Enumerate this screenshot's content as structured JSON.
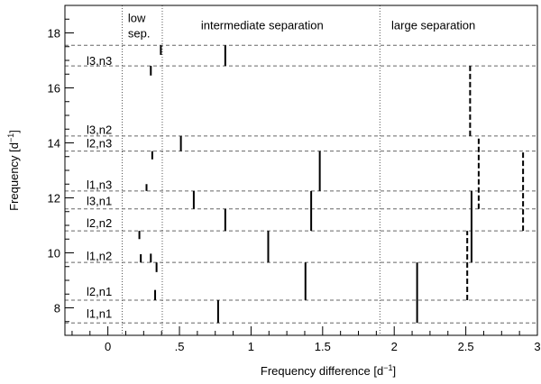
{
  "chart_data": {
    "type": "scatter",
    "title": "",
    "xlabel": "Frequency difference [d",
    "xlabel_sup": "−1",
    "xlabel_end": "]",
    "ylabel": "Frequency [d",
    "ylabel_sup": "−1",
    "ylabel_end": "]",
    "xlim": [
      -0.3,
      3.0
    ],
    "ylim": [
      7.0,
      19.0
    ],
    "grid": false,
    "x_ticks": [
      {
        "value": 0,
        "label": "0"
      },
      {
        "value": 0.5,
        "label": ".5"
      },
      {
        "value": 1,
        "label": "1"
      },
      {
        "value": 1.5,
        "label": "1.5"
      },
      {
        "value": 2,
        "label": "2"
      },
      {
        "value": 2.5,
        "label": "2.5"
      },
      {
        "value": 3,
        "label": "3"
      }
    ],
    "y_ticks": [
      {
        "value": 8,
        "label": "8"
      },
      {
        "value": 10,
        "label": "10"
      },
      {
        "value": 12,
        "label": "12"
      },
      {
        "value": 14,
        "label": "14"
      },
      {
        "value": 16,
        "label": "16"
      },
      {
        "value": 18,
        "label": "18"
      }
    ],
    "region_dividers": [
      0.1,
      0.38,
      1.9
    ],
    "region_labels": [
      {
        "text": "low",
        "x": 0.14,
        "y": 18.55
      },
      {
        "text": "sep.",
        "x": 0.14,
        "y": 18.0
      },
      {
        "text": "intermediate separation",
        "x": 0.65,
        "y": 18.3
      },
      {
        "text": "large separation",
        "x": 1.98,
        "y": 18.3
      }
    ],
    "modes": [
      {
        "label": "l1,n1",
        "freq": 7.45,
        "label_y": 7.8
      },
      {
        "label": "l2,n1",
        "freq": 8.28,
        "label_y": 8.6
      },
      {
        "label": "l1,n2",
        "freq": 9.65,
        "label_y": 9.9
      },
      {
        "label": "l2,n2",
        "freq": 10.8,
        "label_y": 11.1
      },
      {
        "label": "l3,n1",
        "freq": 11.6,
        "label_y": 11.9
      },
      {
        "label": "l1,n3",
        "freq": 12.25,
        "label_y": 12.5
      },
      {
        "label": "l2,n3",
        "freq": 13.7,
        "label_y": 14.0
      },
      {
        "label": "l3,n2",
        "freq": 14.25,
        "label_y": 14.5
      },
      {
        "label": "l3,n3",
        "freq": 16.8,
        "label_y": 17.0
      },
      {
        "label": "",
        "freq": 17.55,
        "label_y": null
      }
    ],
    "separations": [
      {
        "x": 0.37,
        "y0": 17.2,
        "y1": 17.55,
        "style": "solid"
      },
      {
        "x": 0.82,
        "y0": 16.8,
        "y1": 17.55,
        "style": "solid"
      },
      {
        "x": 0.3,
        "y0": 16.45,
        "y1": 16.8,
        "style": "solid"
      },
      {
        "x": 2.53,
        "y0": 14.25,
        "y1": 16.8,
        "style": "dashed"
      },
      {
        "x": 0.51,
        "y0": 13.7,
        "y1": 14.25,
        "style": "solid"
      },
      {
        "x": 0.31,
        "y0": 13.4,
        "y1": 13.7,
        "style": "solid"
      },
      {
        "x": 2.59,
        "y0": 11.6,
        "y1": 14.25,
        "style": "dashed"
      },
      {
        "x": 1.48,
        "y0": 12.25,
        "y1": 13.7,
        "style": "solid"
      },
      {
        "x": 2.9,
        "y0": 10.8,
        "y1": 13.7,
        "style": "dashed"
      },
      {
        "x": 0.27,
        "y0": 12.25,
        "y1": 12.5,
        "style": "solid"
      },
      {
        "x": 0.6,
        "y0": 11.6,
        "y1": 12.25,
        "style": "solid"
      },
      {
        "x": 1.42,
        "y0": 10.8,
        "y1": 12.25,
        "style": "solid"
      },
      {
        "x": 2.54,
        "y0": 9.65,
        "y1": 12.25,
        "style": "solid"
      },
      {
        "x": 0.82,
        "y0": 10.8,
        "y1": 11.6,
        "style": "solid"
      },
      {
        "x": 2.51,
        "y0": 8.28,
        "y1": 10.8,
        "style": "dashed"
      },
      {
        "x": 0.22,
        "y0": 10.5,
        "y1": 10.8,
        "style": "solid"
      },
      {
        "x": 1.12,
        "y0": 9.65,
        "y1": 10.8,
        "style": "solid"
      },
      {
        "x": 0.23,
        "y0": 9.65,
        "y1": 9.95,
        "style": "solid"
      },
      {
        "x": 0.3,
        "y0": 9.65,
        "y1": 9.97,
        "style": "solid"
      },
      {
        "x": 0.34,
        "y0": 9.3,
        "y1": 9.65,
        "style": "solid"
      },
      {
        "x": 1.38,
        "y0": 8.28,
        "y1": 9.65,
        "style": "solid"
      },
      {
        "x": 2.16,
        "y0": 7.45,
        "y1": 9.65,
        "style": "solid"
      },
      {
        "x": 0.33,
        "y0": 8.28,
        "y1": 8.65,
        "style": "solid"
      },
      {
        "x": 0.77,
        "y0": 7.45,
        "y1": 8.28,
        "style": "solid"
      }
    ]
  }
}
